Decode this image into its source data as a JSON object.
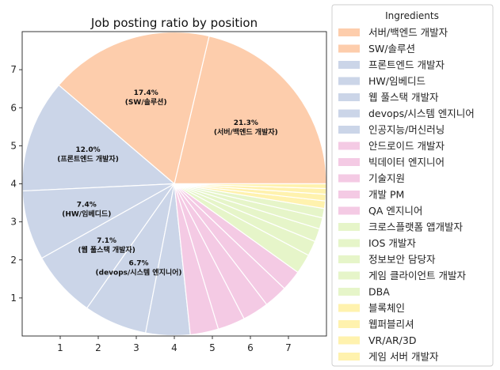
{
  "chart_data": {
    "type": "pie",
    "title": "Job posting ratio by position",
    "legend_title": "Ingredients",
    "legend_position": "right",
    "axis_ticks": {
      "x": [
        1,
        2,
        3,
        4,
        5,
        6,
        7
      ],
      "y": [
        1,
        2,
        3,
        4,
        5,
        6,
        7
      ]
    },
    "xlim": [
      0,
      8
    ],
    "ylim": [
      0,
      8
    ],
    "slices": [
      {
        "label": "서버/백엔드 개발자",
        "value": 21.3,
        "color": "#fdcdac",
        "show_label": true
      },
      {
        "label": "SW/솔루션",
        "value": 17.4,
        "color": "#fdcdac",
        "show_label": true
      },
      {
        "label": "프론트엔드 개발자",
        "value": 12.0,
        "color": "#cbd5e8",
        "show_label": true
      },
      {
        "label": "HW/임베디드",
        "value": 7.4,
        "color": "#cbd5e8",
        "show_label": true
      },
      {
        "label": "웹 풀스택 개발자",
        "value": 7.1,
        "color": "#cbd5e8",
        "show_label": true
      },
      {
        "label": "devops/시스템 엔지니어",
        "value": 6.7,
        "color": "#cbd5e8",
        "show_label": true
      },
      {
        "label": "인공지능/머신러닝",
        "value": 4.7,
        "color": "#cbd5e8",
        "show_label": false
      },
      {
        "label": "안드로이드 개발자",
        "value": 3.0,
        "color": "#f4cae4",
        "show_label": false
      },
      {
        "label": "빅데이터 엔지니어",
        "value": 2.9,
        "color": "#f4cae4",
        "show_label": false
      },
      {
        "label": "기술지원",
        "value": 2.8,
        "color": "#f4cae4",
        "show_label": false
      },
      {
        "label": "개발 PM",
        "value": 2.5,
        "color": "#f4cae4",
        "show_label": false
      },
      {
        "label": "QA 엔지니어",
        "value": 2.2,
        "color": "#f4cae4",
        "show_label": false
      },
      {
        "label": "크로스플랫폼 앱개발자",
        "value": 2.1,
        "color": "#e6f5c9",
        "show_label": false
      },
      {
        "label": "IOS 개발자",
        "value": 1.6,
        "color": "#e6f5c9",
        "show_label": false
      },
      {
        "label": "정보보안 담당자",
        "value": 1.4,
        "color": "#e6f5c9",
        "show_label": false
      },
      {
        "label": "게임 클라이언트 개발자",
        "value": 1.2,
        "color": "#e6f5c9",
        "show_label": false
      },
      {
        "label": "DBA",
        "value": 1.0,
        "color": "#e6f5c9",
        "show_label": false
      },
      {
        "label": "블록체인",
        "value": 0.8,
        "color": "#fff2ae",
        "show_label": false
      },
      {
        "label": "웹퍼블리셔",
        "value": 0.7,
        "color": "#fff2ae",
        "show_label": false
      },
      {
        "label": "VR/AR/3D",
        "value": 0.6,
        "color": "#fff2ae",
        "show_label": false
      },
      {
        "label": "게임 서버 개발자",
        "value": 0.5,
        "color": "#fff2ae",
        "show_label": false
      }
    ]
  }
}
